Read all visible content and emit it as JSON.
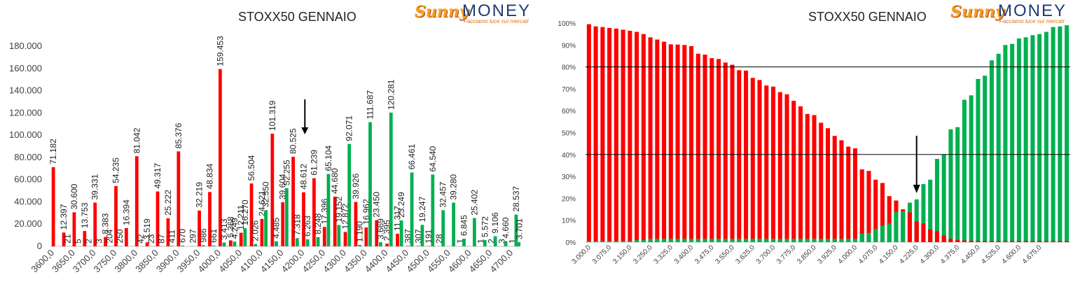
{
  "brand": {
    "logo_word_1": "Sunny",
    "logo_word_2": "MONEY",
    "tagline": "Facciamo luce sui mercati"
  },
  "colors": {
    "red": "#ff0000",
    "green": "#00b050",
    "axis": "#bfbfbf",
    "text": "#404040",
    "arrow": "#000000"
  },
  "chart_data": [
    {
      "type": "bar",
      "title": "STOXX50 GENNAIO",
      "ylim": [
        0,
        180000
      ],
      "yticks": [
        "0",
        "20.000",
        "40.000",
        "60.000",
        "80.000",
        "100.000",
        "120.000",
        "140.000",
        "160.000",
        "180.000"
      ],
      "xticks": [
        "3600,0",
        "3650,0",
        "3700,0",
        "3750,0",
        "3800,0",
        "3850,0",
        "3900,0",
        "3950,0",
        "4000,0",
        "4050,0",
        "4100,0",
        "4150,0",
        "4200,0",
        "4250,0",
        "4300,0",
        "4350,0",
        "4400,0",
        "4450,0",
        "4500,0",
        "4550,0",
        "4600,0",
        "4650,0",
        "4700,0"
      ],
      "categories": [
        "3600",
        "3625",
        "3650",
        "3675",
        "3700",
        "3725",
        "3750",
        "3775",
        "3800",
        "3825",
        "3850",
        "3875",
        "3900",
        "3925",
        "3950",
        "3975",
        "4000",
        "4025",
        "4050",
        "4075",
        "4100",
        "4125",
        "4150",
        "4175",
        "4200",
        "4225",
        "4250",
        "4275",
        "4300",
        "4325",
        "4350",
        "4375",
        "4400",
        "4425",
        "4450",
        "4475",
        "4500",
        "4525",
        "4550",
        "4575",
        "4600",
        "4625",
        "4650",
        "4675",
        "4700"
      ],
      "series": [
        {
          "color": "red",
          "values": [
            71182,
            12397,
            30600,
            13753,
            39331,
            8383,
            54235,
            16394,
            81042,
            3519,
            49317,
            25222,
            85376,
            0,
            32219,
            48834,
            159453,
            5368,
            12211,
            56504,
            24621,
            101319,
            39604,
            80525,
            48612,
            61239,
            17396,
            44680,
            12872,
            39926,
            16962,
            23450,
            2395,
            11317,
            387,
            307,
            191,
            28,
            0,
            1,
            0,
            1,
            2,
            3,
            1
          ],
          "labels": [
            "71.182",
            "12.397",
            "30.600",
            "13.753",
            "39.331",
            "8.383",
            "54.235",
            "16.394",
            "81.042",
            "3.519",
            "49.317",
            "25.222",
            "85.376",
            "",
            "32.219",
            "48.834",
            "159.453",
            "5.368",
            "12.211",
            "56.504",
            "24.621",
            "101.319",
            "39.604",
            "80.525",
            "48.612",
            "61.239",
            "17.396",
            "44.680",
            "12.872",
            "39.926",
            "16.962",
            "23.450",
            "2.395",
            "11.317",
            "387",
            "307",
            "191",
            "28",
            "",
            "1",
            "",
            "1",
            "2",
            "3",
            "1"
          ]
        },
        {
          "color": "green",
          "values": [
            0,
            21,
            5,
            2,
            3,
            204,
            250,
            0,
            42,
            23,
            87,
            411,
            670,
            297,
            986,
            661,
            3413,
            4249,
            16270,
            2026,
            32550,
            4485,
            52255,
            7318,
            6263,
            8248,
            65104,
            19152,
            92071,
            1190,
            111687,
            3669,
            120281,
            23249,
            66461,
            19247,
            64540,
            32457,
            39280,
            6845,
            25402,
            5572,
            9106,
            4660,
            28537
          ],
          "labels": [
            "",
            "21",
            "5",
            "2",
            "3",
            "204",
            "250",
            "",
            "42",
            "23",
            "87",
            "411",
            "670",
            "297",
            "986",
            "661",
            "3.413",
            "4.249",
            "16.270",
            "2.026",
            "32.550",
            "4.485",
            "52.255",
            "7.318",
            "6.263",
            "8.248",
            "65.104",
            "19.152",
            "92.071",
            "1.190",
            "111.687",
            "3.669",
            "120.281",
            "23.249",
            "66.461",
            "19.247",
            "64.540",
            "32.457",
            "39.280",
            "6.845",
            "25.402",
            "5.572",
            "9.106",
            "4.660",
            "28.537"
          ]
        }
      ],
      "extra_label": "3.701",
      "extra_value": 3701,
      "arrow_at": "4200"
    },
    {
      "type": "bar",
      "title": "STOXX50 GENNAIO",
      "ylim": [
        0,
        100
      ],
      "yticks": [
        "0%",
        "10%",
        "20%",
        "30%",
        "40%",
        "50%",
        "60%",
        "70%",
        "80%",
        "90%",
        "100%"
      ],
      "xticks": [
        "3.000,0",
        "3.075,0",
        "3.150,0",
        "3.250,0",
        "3.325,0",
        "3.400,0",
        "3.475,0",
        "3.550,0",
        "3.625,0",
        "3.700,0",
        "3.775,0",
        "3.850,0",
        "3.925,0",
        "4.000,0",
        "4.075,0",
        "4.150,0",
        "4.225,0",
        "4.300,0",
        "4.375,0",
        "4.450,0",
        "4.525,0",
        "4.600,0",
        "4.675,0"
      ],
      "hlines": [
        80,
        40
      ],
      "series": [
        {
          "color": "red",
          "values": [
            99.5,
            98.5,
            98.2,
            97.8,
            97.5,
            97,
            96.5,
            96,
            95,
            93.5,
            92.5,
            91.5,
            90.3,
            90.2,
            90,
            89.5,
            86,
            85.6,
            84,
            83.6,
            82,
            81,
            78.5,
            78.3,
            75,
            74,
            71.5,
            71,
            68.5,
            67.5,
            64.5,
            62,
            58.5,
            58,
            54.5,
            52,
            48.5,
            46.5,
            43.6,
            42.8,
            33.2,
            32.5,
            28.5,
            27,
            21,
            19,
            15,
            13.6,
            9.5,
            8.5,
            5.8,
            5,
            3,
            1.5,
            1,
            0.8,
            0.6,
            0.5,
            0.5,
            0.5,
            0.5,
            0.5,
            0.5,
            0.5,
            0.5,
            0.5,
            0.5,
            0.5,
            0.5,
            0.5,
            0.5
          ]
        },
        {
          "color": "green",
          "values": [
            0.5,
            0.5,
            0.5,
            0.5,
            0.5,
            0.5,
            0.5,
            1,
            1,
            1.5,
            1.5,
            1.5,
            1.5,
            1.5,
            1.5,
            1.5,
            1.5,
            1.5,
            1.5,
            1.5,
            1.5,
            1.5,
            1.5,
            1.5,
            1.5,
            1.5,
            1.5,
            1.5,
            1.5,
            1.5,
            1.5,
            1.5,
            1.5,
            1.5,
            1.5,
            1.5,
            1.5,
            1.5,
            1.5,
            1.5,
            3.8,
            4.2,
            6,
            7.5,
            8.5,
            13.8,
            14,
            18,
            19.5,
            26.5,
            28.5,
            38,
            40,
            51.5,
            52.5,
            65,
            67,
            74.5,
            76,
            83,
            86,
            90,
            90.5,
            93,
            93.5,
            94.5,
            95,
            96,
            98.2,
            98.5,
            99
          ]
        }
      ],
      "arrow_at_index": 48
    }
  ]
}
